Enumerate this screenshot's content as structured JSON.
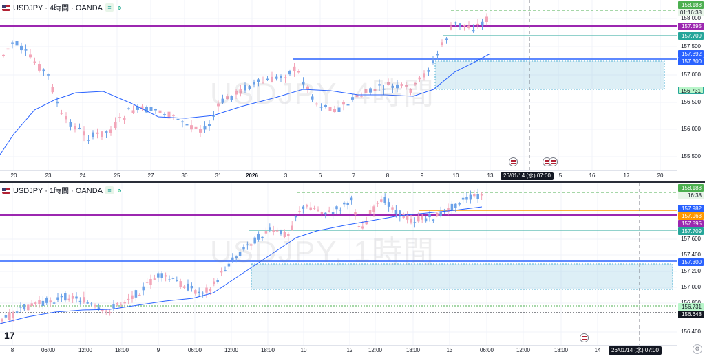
{
  "colors": {
    "up": "#6ca2e8",
    "down": "#f3a5b8",
    "ma": "#2962ff",
    "purple_line": "#9c27b0",
    "blue_line": "#2962ff",
    "green_line": "#26a69a",
    "orange_line": "#ff9800",
    "zone_fill": "rgba(120,190,220,0.25)",
    "zone_border": "#4fb0d4"
  },
  "top_chart": {
    "header": {
      "symbol": "USDJPY · 4時間 · OANDA",
      "badge": "≡"
    },
    "watermark": "USDJPY, 4時間",
    "price_ticks": [
      "158.000",
      "157.500",
      "157.000",
      "156.500",
      "156.000",
      "155.500"
    ],
    "price_labels": {
      "current": "158.188",
      "countdown": "01:16:38",
      "purple": "157.895",
      "green": "157.709",
      "high": "157.392",
      "blue": "157.300",
      "low": "156.731"
    },
    "time_labels": [
      "20",
      "23",
      "24",
      "25",
      "27",
      "30",
      "31",
      "2026",
      "3",
      "6",
      "7",
      "8",
      "9",
      "10",
      "13",
      "5",
      "16",
      "17",
      "20"
    ],
    "cursor_time": "26/01/14 (水)   07:00"
  },
  "bottom_chart": {
    "header": {
      "symbol": "USDJPY · 1時間 · OANDA",
      "badge": "≡"
    },
    "watermark": "USDJPY, 1時間",
    "price_ticks": [
      "157.600",
      "157.400",
      "157.200",
      "157.000",
      "156.800",
      "156.400"
    ],
    "price_labels": {
      "current": "158.188",
      "countdown": "16:38",
      "orange_high": "157.982",
      "orange": "157.963",
      "purple": "157.895",
      "green": "157.709",
      "blue": "157.300",
      "green_dotted": "156.731",
      "black_dotted": "156.648"
    },
    "time_labels": [
      "8",
      "06:00",
      "12:00",
      "18:00",
      "9",
      "06:00",
      "12:00",
      "18:00",
      "10",
      "12",
      "12:00",
      "18:00",
      "13",
      "06:00",
      "12:00",
      "18:00",
      "14"
    ],
    "cursor_time": "26/01/14 (水)   07:00",
    "logo": "17",
    "corner_button": "⚙"
  }
}
